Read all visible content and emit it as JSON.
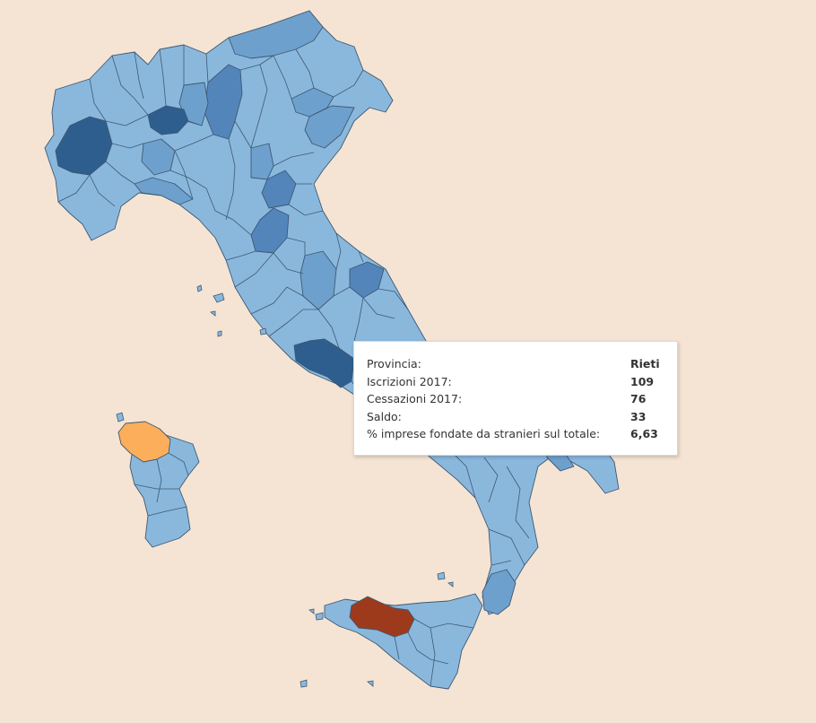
{
  "legend_colors": {
    "lightest": "#8ab8dd",
    "light": "#6ea0cd",
    "medium": "#5385bb",
    "dark": "#2e5e8e",
    "orange": "#fdae5b",
    "red": "#9e3a1c"
  },
  "tooltip": {
    "rows": [
      {
        "label": "Provincia:",
        "value": "Rieti"
      },
      {
        "label": "Iscrizioni 2017:",
        "value": "109"
      },
      {
        "label": "Cessazioni 2017:",
        "value": "76"
      },
      {
        "label": "Saldo:",
        "value": "33"
      },
      {
        "label": "% imprese fondate da stranieri sul totale:",
        "value": "6,63"
      }
    ]
  }
}
